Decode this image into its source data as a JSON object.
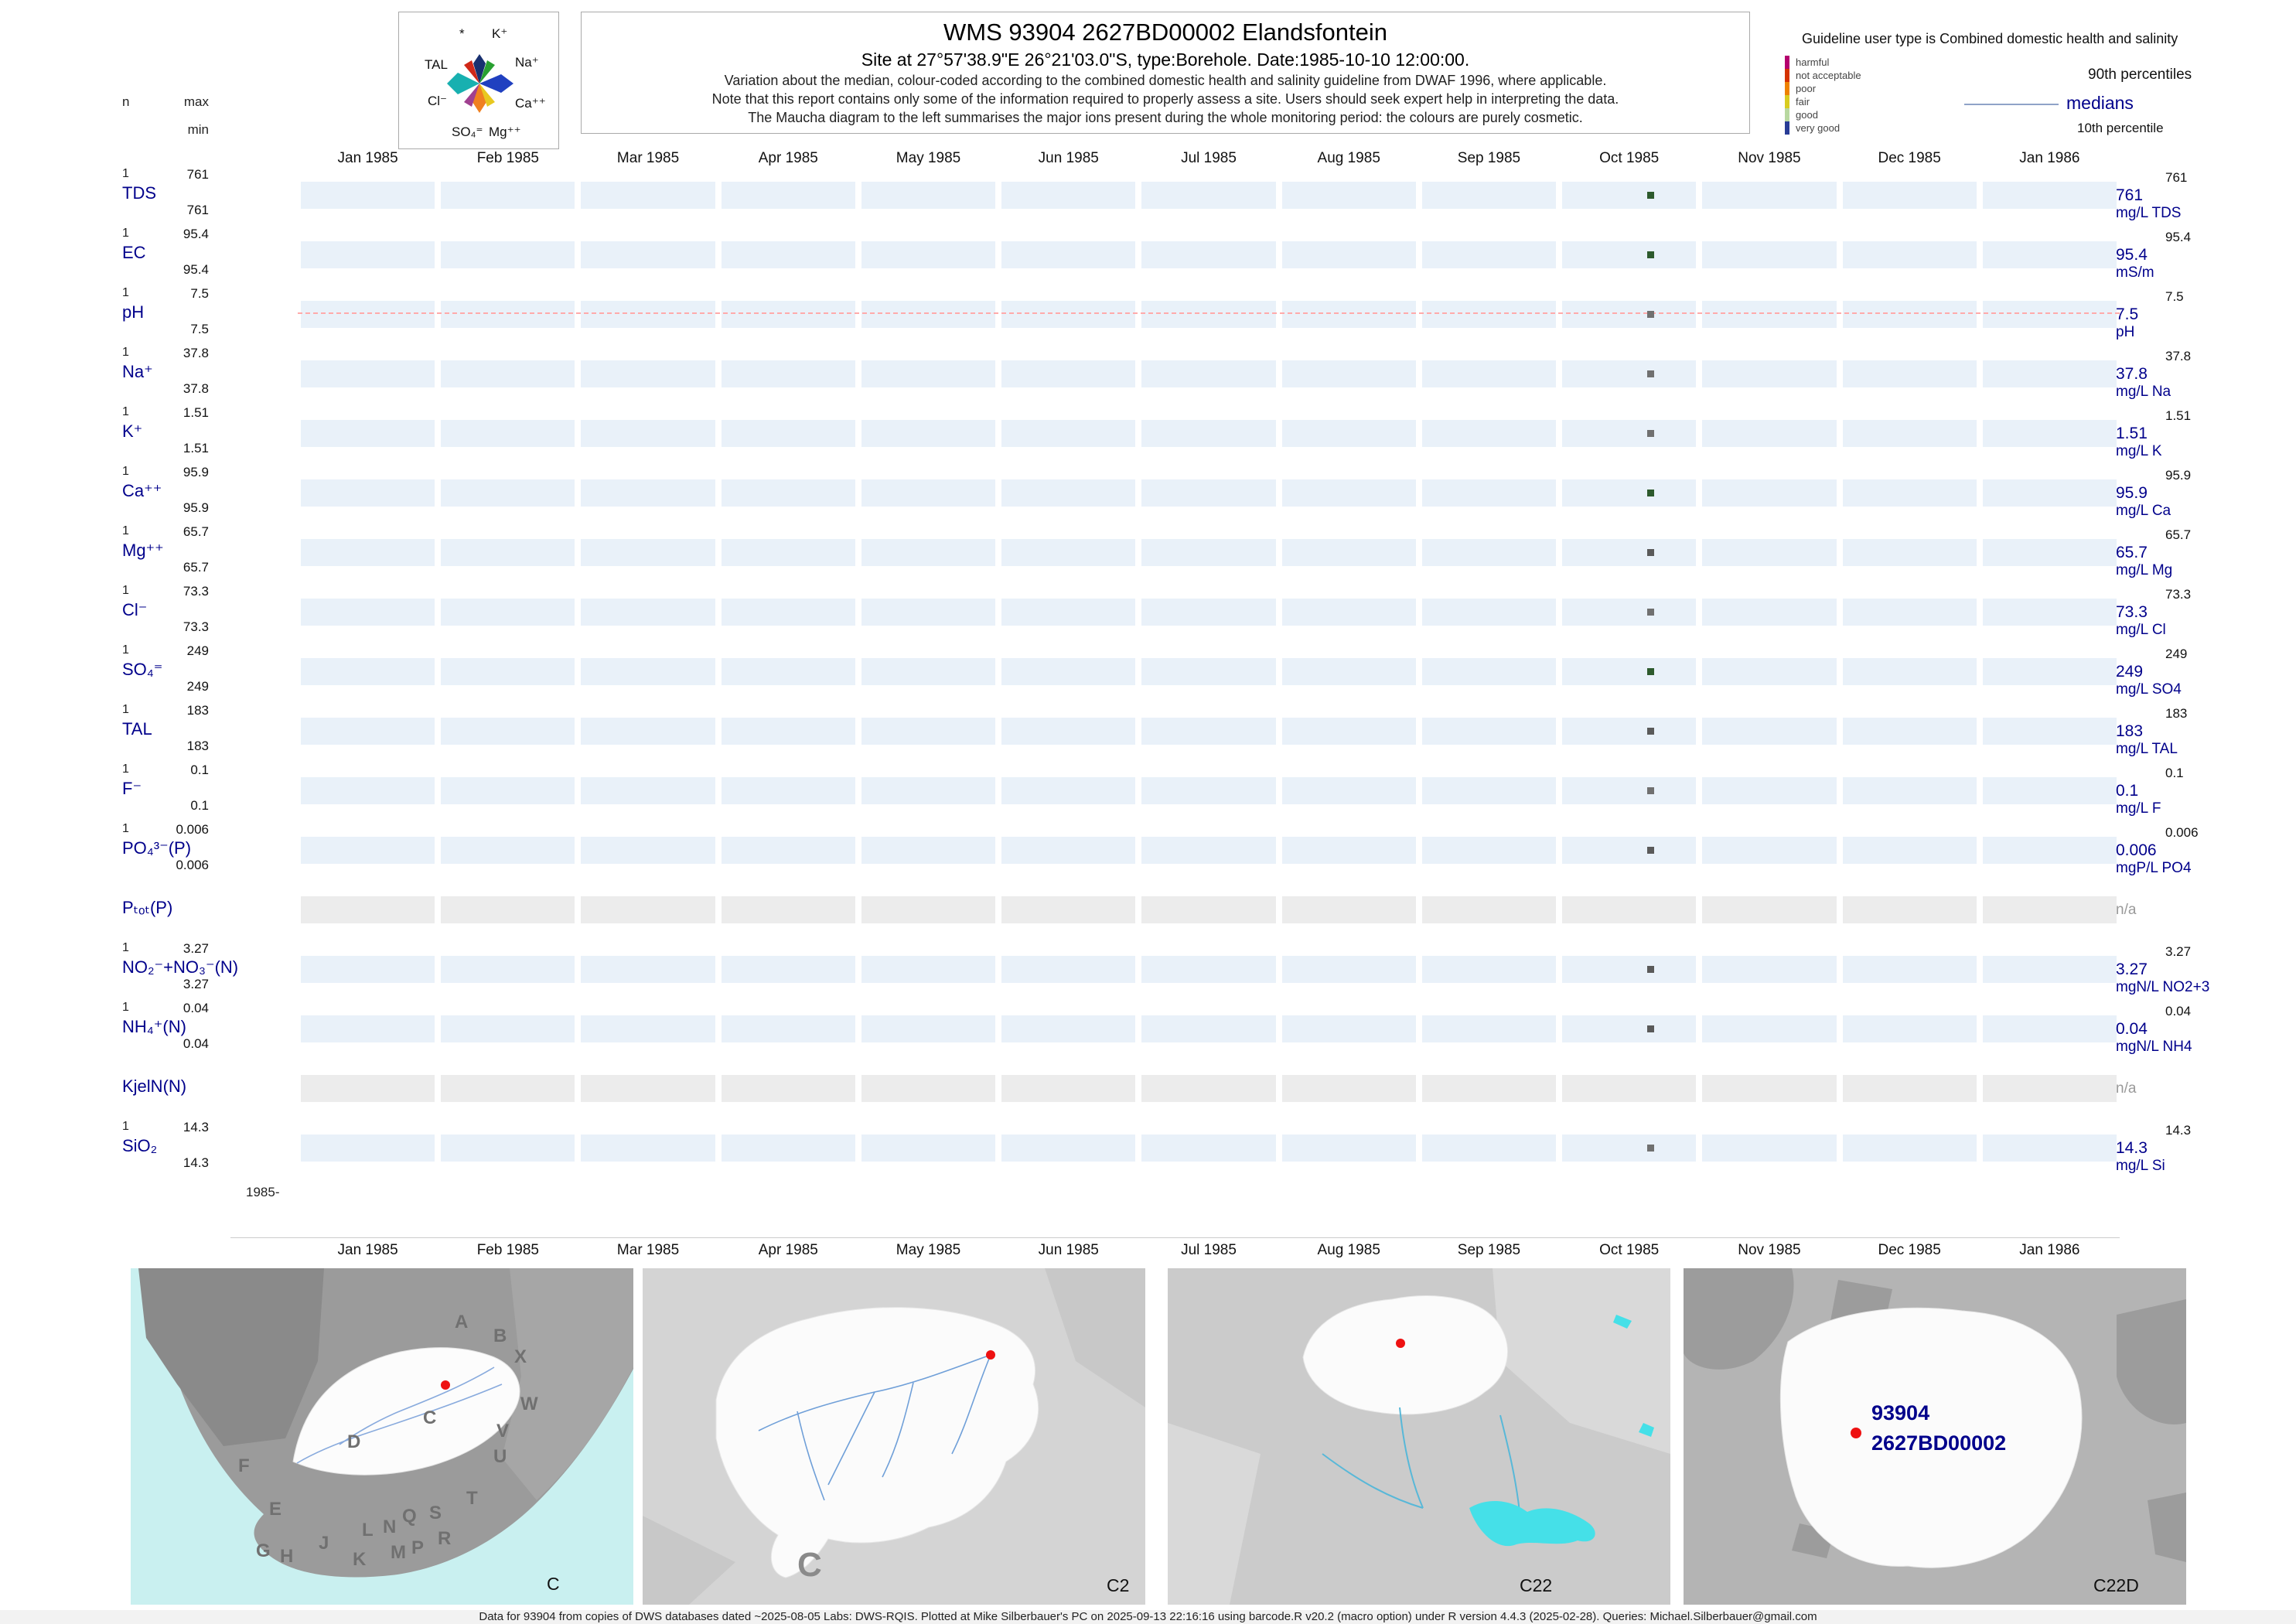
{
  "header": {
    "title": "WMS 93904 2627BD00002 Elandsfontein",
    "subtitle": "Site at 27°57'38.9\"E 26°21'03.0\"S, type:Borehole. Date:1985-10-10 12:00:00.",
    "notes": [
      "Variation about the median, colour-coded according to the combined domestic health and salinity guideline from DWAF 1996, where applicable.",
      "Note that this report contains only some of the information required to properly assess a site. Users should seek expert help in interpreting the data.",
      "The Maucha diagram to the left summarises the major ions present during the whole monitoring period: the colours are purely cosmetic."
    ],
    "left_labels": {
      "n": "n",
      "max": "max",
      "min": "min"
    },
    "maucha_labels": {
      "star": "*",
      "k": "K⁺",
      "na": "Na⁺",
      "tal": "TAL",
      "cl": "Cl⁻",
      "ca": "Ca⁺⁺",
      "so4": "SO₄⁼",
      "mg": "Mg⁺⁺"
    },
    "guideline": {
      "title": "Guideline user type is Combined domestic health and salinity",
      "classes": [
        "harmful",
        "not acceptable",
        "poor",
        "fair",
        "good",
        "very good"
      ],
      "colors": [
        "#b4006e",
        "#d43200",
        "#ee8200",
        "#d8cc20",
        "#b8d8a0",
        "#283c96"
      ],
      "p90_label": "90th percentiles",
      "median_label": "medians",
      "p10_label": "10th percentile"
    }
  },
  "axis": {
    "origin_label": "1985-"
  },
  "chart_data": {
    "type": "scatter",
    "title": "WMS 93904 2627BD00002 Elandsfontein",
    "x_ticks": [
      "Jan 1985",
      "Feb 1985",
      "Mar 1985",
      "Apr 1985",
      "May 1985",
      "Jun 1985",
      "Jul 1985",
      "Aug 1985",
      "Sep 1985",
      "Oct 1985",
      "Nov 1985",
      "Dec 1985",
      "Jan 1986"
    ],
    "sample_date": "1985-10-10 12:00:00",
    "point_month_index": 9,
    "point_month_frac": 0.65,
    "na_label": "n/a",
    "series": [
      {
        "param": "TDS",
        "n": "1",
        "max": "761",
        "min": "761",
        "median": "761",
        "p90": "761",
        "unit": "mg/L TDS",
        "value": 761,
        "points": [
          {
            "x": "1985-10-10",
            "y": 761
          }
        ],
        "point_color": "#2d5a2d",
        "na": false
      },
      {
        "param": "EC",
        "n": "1",
        "max": "95.4",
        "min": "95.4",
        "median": "95.4",
        "p90": "95.4",
        "unit": "mS/m",
        "value": 95.4,
        "points": [
          {
            "x": "1985-10-10",
            "y": 95.4
          }
        ],
        "point_color": "#2d5a2d",
        "na": false
      },
      {
        "param": "pH",
        "n": "1",
        "max": "7.5",
        "min": "7.5",
        "median": "7.5",
        "p90": "7.5",
        "unit": "pH",
        "value": 7.5,
        "points": [
          {
            "x": "1985-10-10",
            "y": 7.5
          }
        ],
        "point_color": "#707070",
        "na": false,
        "median_line": true
      },
      {
        "param": "Na⁺",
        "n": "1",
        "max": "37.8",
        "min": "37.8",
        "median": "37.8",
        "p90": "37.8",
        "unit": "mg/L Na",
        "value": 37.8,
        "points": [
          {
            "x": "1985-10-10",
            "y": 37.8
          }
        ],
        "point_color": "#707070",
        "na": false
      },
      {
        "param": "K⁺",
        "n": "1",
        "max": "1.51",
        "min": "1.51",
        "median": "1.51",
        "p90": "1.51",
        "unit": "mg/L K",
        "value": 1.51,
        "points": [
          {
            "x": "1985-10-10",
            "y": 1.51
          }
        ],
        "point_color": "#707070",
        "na": false
      },
      {
        "param": "Ca⁺⁺",
        "n": "1",
        "max": "95.9",
        "min": "95.9",
        "median": "95.9",
        "p90": "95.9",
        "unit": "mg/L Ca",
        "value": 95.9,
        "points": [
          {
            "x": "1985-10-10",
            "y": 95.9
          }
        ],
        "point_color": "#2d5a2d",
        "na": false
      },
      {
        "param": "Mg⁺⁺",
        "n": "1",
        "max": "65.7",
        "min": "65.7",
        "median": "65.7",
        "p90": "65.7",
        "unit": "mg/L Mg",
        "value": 65.7,
        "points": [
          {
            "x": "1985-10-10",
            "y": 65.7
          }
        ],
        "point_color": "#5a5a5a",
        "na": false
      },
      {
        "param": "Cl⁻",
        "n": "1",
        "max": "73.3",
        "min": "73.3",
        "median": "73.3",
        "p90": "73.3",
        "unit": "mg/L Cl",
        "value": 73.3,
        "points": [
          {
            "x": "1985-10-10",
            "y": 73.3
          }
        ],
        "point_color": "#707070",
        "na": false
      },
      {
        "param": "SO₄⁼",
        "n": "1",
        "max": "249",
        "min": "249",
        "median": "249",
        "p90": "249",
        "unit": "mg/L SO4",
        "value": 249,
        "points": [
          {
            "x": "1985-10-10",
            "y": 249
          }
        ],
        "point_color": "#2d5a2d",
        "na": false
      },
      {
        "param": "TAL",
        "n": "1",
        "max": "183",
        "min": "183",
        "median": "183",
        "p90": "183",
        "unit": "mg/L TAL",
        "value": 183,
        "points": [
          {
            "x": "1985-10-10",
            "y": 183
          }
        ],
        "point_color": "#5a5a5a",
        "na": false
      },
      {
        "param": "F⁻",
        "n": "1",
        "max": "0.1",
        "min": "0.1",
        "median": "0.1",
        "p90": "0.1",
        "unit": "mg/L F",
        "value": 0.1,
        "points": [
          {
            "x": "1985-10-10",
            "y": 0.1
          }
        ],
        "point_color": "#707070",
        "na": false
      },
      {
        "param": "PO₄³⁻(P)",
        "n": "1",
        "max": "0.006",
        "min": "0.006",
        "median": "0.006",
        "p90": "0.006",
        "unit": "mgP/L PO4",
        "value": 0.006,
        "points": [
          {
            "x": "1985-10-10",
            "y": 0.006
          }
        ],
        "point_color": "#5a5a5a",
        "na": false
      },
      {
        "param": "Pₜₒₜ(P)",
        "na": true,
        "points": []
      },
      {
        "param": "NO₂⁻+NO₃⁻(N)",
        "n": "1",
        "max": "3.27",
        "min": "3.27",
        "median": "3.27",
        "p90": "3.27",
        "unit": "mgN/L NO2+3",
        "value": 3.27,
        "points": [
          {
            "x": "1985-10-10",
            "y": 3.27
          }
        ],
        "point_color": "#5a5a5a",
        "na": false
      },
      {
        "param": "NH₄⁺(N)",
        "n": "1",
        "max": "0.04",
        "min": "0.04",
        "median": "0.04",
        "p90": "0.04",
        "unit": "mgN/L NH4",
        "value": 0.04,
        "points": [
          {
            "x": "1985-10-10",
            "y": 0.04
          }
        ],
        "point_color": "#5a5a5a",
        "na": false
      },
      {
        "param": "KjelN(N)",
        "na": true,
        "points": []
      },
      {
        "param": "SiO₂",
        "n": "1",
        "max": "14.3",
        "min": "14.3",
        "median": "14.3",
        "p90": "14.3",
        "unit": "mg/L Si",
        "value": 14.3,
        "points": [
          {
            "x": "1985-10-10",
            "y": 14.3
          }
        ],
        "point_color": "#707070",
        "na": false
      }
    ]
  },
  "maps": {
    "overview": {
      "label": "C",
      "region_letters": [
        "A",
        "B",
        "X",
        "W",
        "C",
        "D",
        "V",
        "U",
        "T",
        "F",
        "E",
        "Q",
        "S",
        "R",
        "G",
        "H",
        "J",
        "K",
        "L",
        "N",
        "M",
        "P"
      ]
    },
    "c2": {
      "label": "C2",
      "big_letter": "C"
    },
    "c22": {
      "label": "C22"
    },
    "c22d": {
      "label": "C22D",
      "site_id": "93904",
      "site_code": "2627BD00002"
    }
  },
  "footer": "Data for 93904 from copies of DWS databases dated ~2025-08-05 Labs: DWS-RQIS. Plotted at Mike Silberbauer's PC on 2025-09-13 22:16:16 using barcode.R v20.2 (macro option) under R version 4.4.3 (2025-02-28). Queries: Michael.Silberbauer@gmail.com"
}
